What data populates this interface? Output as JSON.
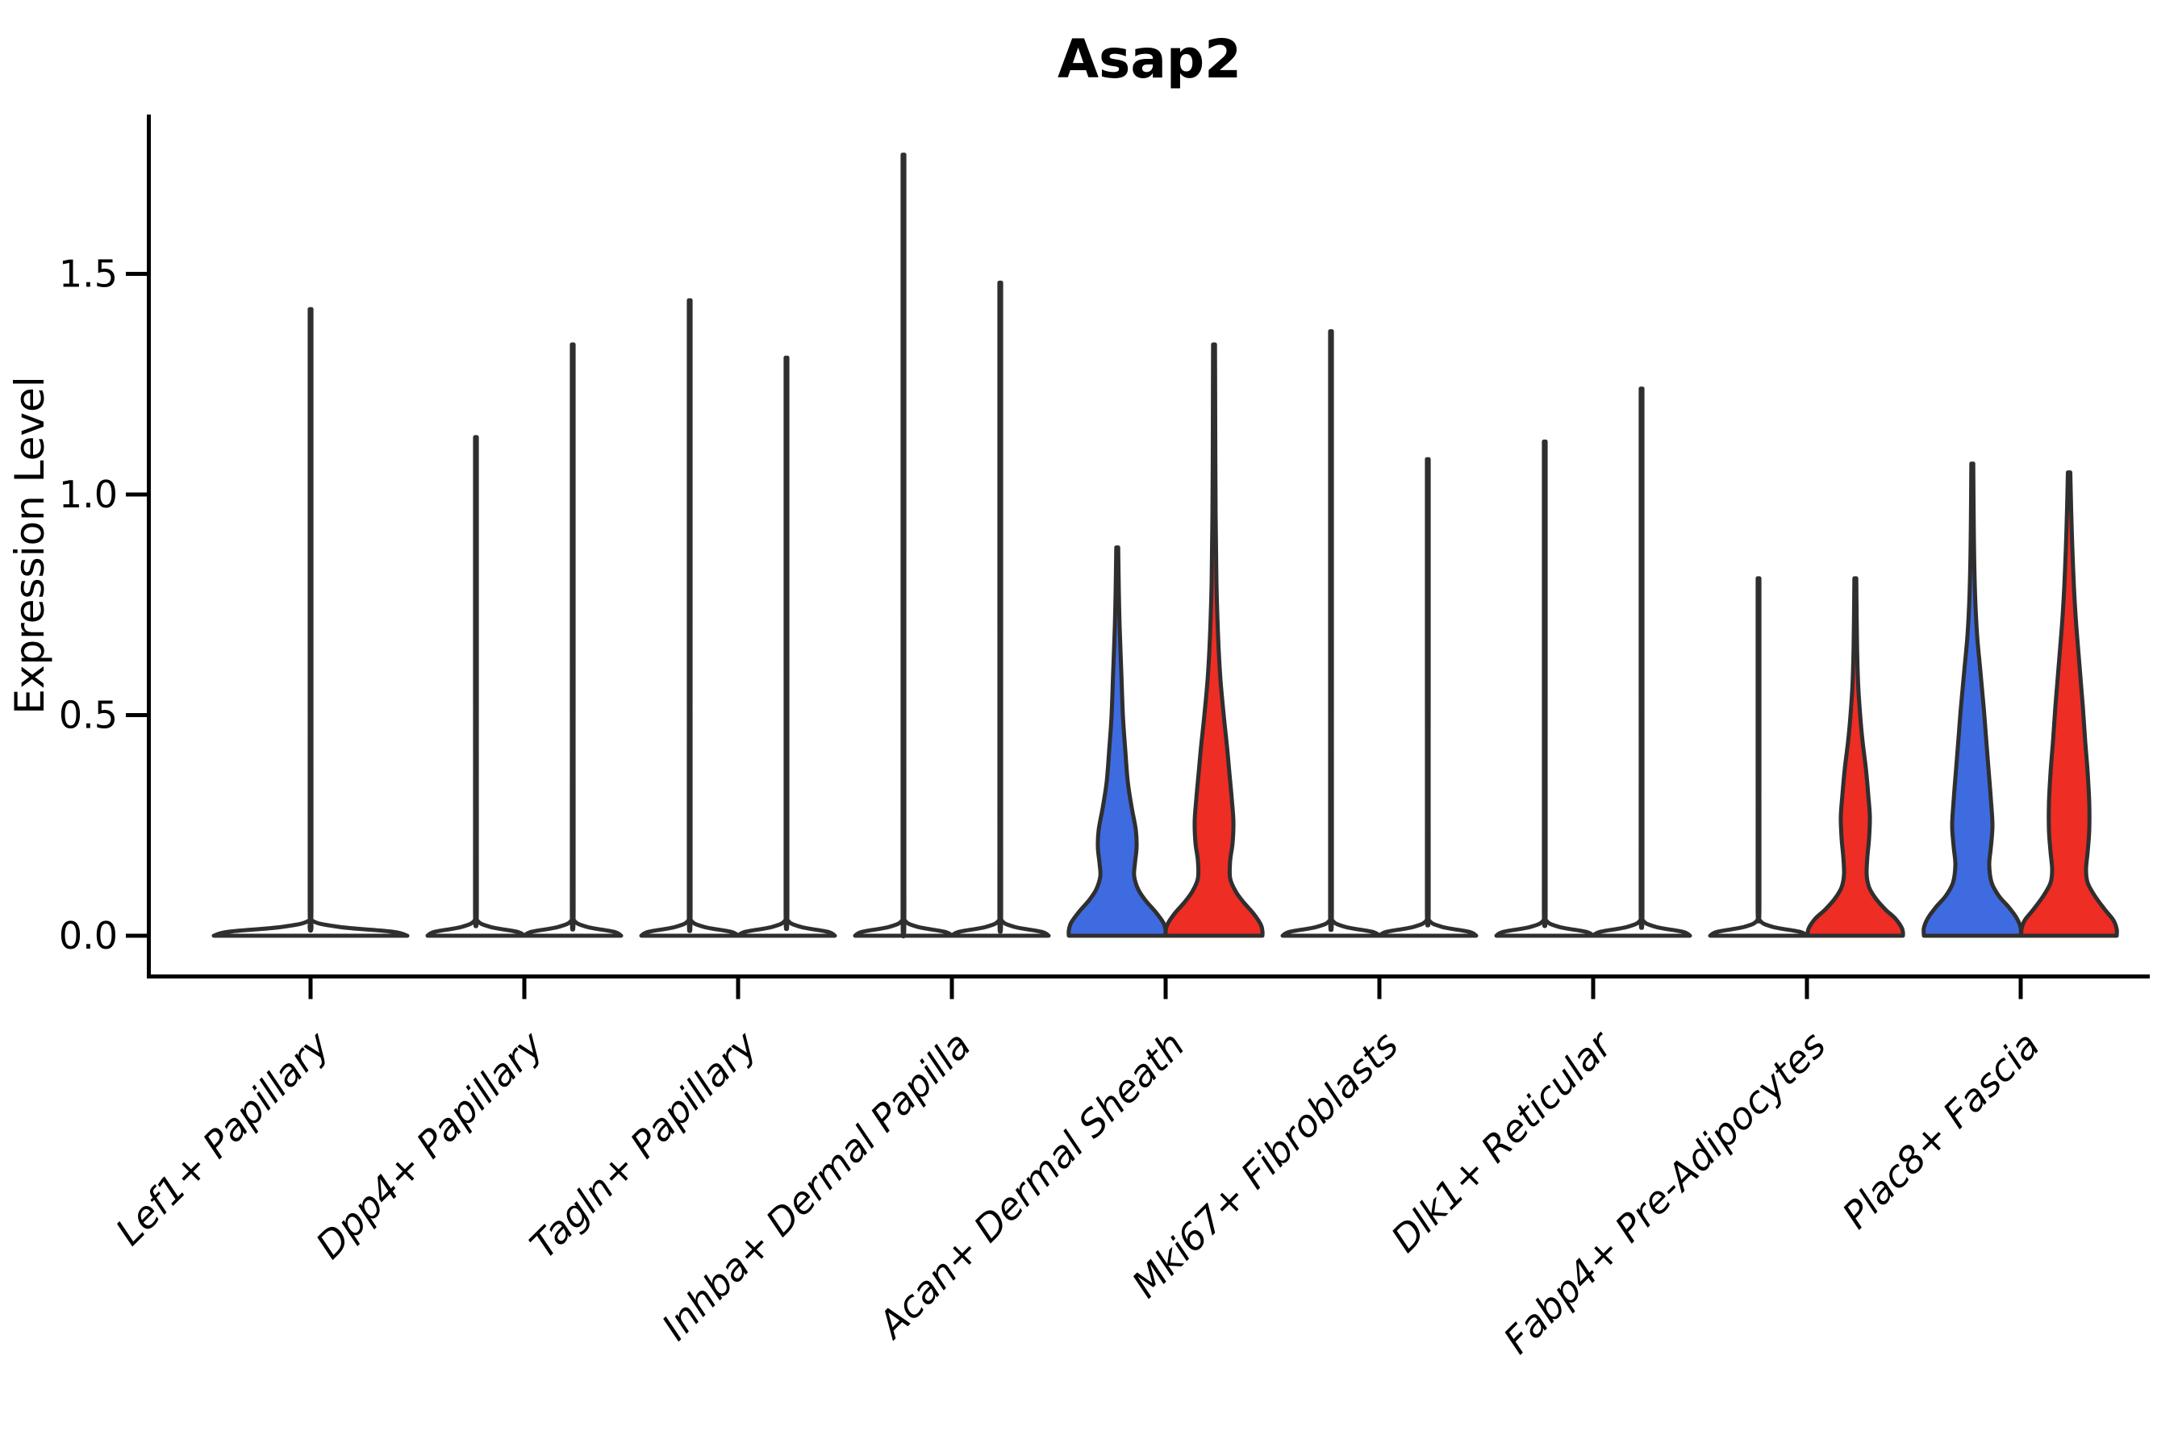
{
  "title": "Asap2",
  "axes": {
    "ylabel": "Expression Level",
    "yticklabels": [
      "0.0",
      "0.5",
      "1.0",
      "1.5"
    ]
  },
  "colors": {
    "group_blue": "#3F6BE0",
    "group_red": "#EE2D24",
    "violin_outline": "#2F2F2F",
    "axis": "#000000",
    "unfilled_violin": "#FFFFFF"
  },
  "chart_data": {
    "type": "violin",
    "title": "Asap2",
    "xlabel": "",
    "ylabel": "Expression Level",
    "ylim": [
      -0.09,
      1.86
    ],
    "yticks": [
      0.0,
      0.5,
      1.0,
      1.5
    ],
    "grid": false,
    "legend": "none",
    "categories": [
      "Lef1+ Papillary",
      "Dpp4+ Papillary",
      "Tagln+ Papillary",
      "Inhba+ Dermal Papilla",
      "Acan+ Dermal Sheath",
      "Mki67+ Fibroblasts",
      "Dlk1+ Reticular",
      "Fabp4+ Pre-Adipocytes",
      "Plac8+ Fascia"
    ],
    "violins": [
      {
        "category": 0,
        "side": "center",
        "max": 1.42,
        "color": "white",
        "kind": "spike",
        "base_halfwidth": 120
      },
      {
        "category": 1,
        "side": "left",
        "max": 1.13,
        "color": "white",
        "kind": "spike",
        "base_halfwidth": 60
      },
      {
        "category": 1,
        "side": "right",
        "max": 1.34,
        "color": "white",
        "kind": "spike",
        "base_halfwidth": 60
      },
      {
        "category": 2,
        "side": "left",
        "max": 1.44,
        "color": "white",
        "kind": "spike",
        "base_halfwidth": 60
      },
      {
        "category": 2,
        "side": "right",
        "max": 1.31,
        "color": "white",
        "kind": "spike",
        "base_halfwidth": 60
      },
      {
        "category": 3,
        "side": "left",
        "max": 1.77,
        "color": "white",
        "kind": "spike",
        "base_halfwidth": 60
      },
      {
        "category": 3,
        "side": "right",
        "max": 1.48,
        "color": "white",
        "kind": "spike",
        "base_halfwidth": 60
      },
      {
        "category": 4,
        "side": "left",
        "max": 0.88,
        "color": "blue",
        "kind": "shaped",
        "base_halfwidth": 60,
        "profile": [
          [
            0.88,
            1.2
          ],
          [
            0.78,
            2
          ],
          [
            0.7,
            3
          ],
          [
            0.6,
            5
          ],
          [
            0.5,
            7
          ],
          [
            0.42,
            10
          ],
          [
            0.35,
            13
          ],
          [
            0.29,
            18
          ],
          [
            0.24,
            23
          ],
          [
            0.2,
            24
          ],
          [
            0.165,
            22
          ],
          [
            0.135,
            21
          ],
          [
            0.105,
            26
          ],
          [
            0.08,
            35
          ],
          [
            0.055,
            47
          ],
          [
            0.03,
            57
          ],
          [
            0.012,
            60
          ],
          [
            0,
            60
          ]
        ]
      },
      {
        "category": 4,
        "side": "right",
        "max": 1.34,
        "color": "red",
        "kind": "shaped",
        "base_halfwidth": 60,
        "profile": [
          [
            1.34,
            1.2
          ],
          [
            1.15,
            1.5
          ],
          [
            0.95,
            2
          ],
          [
            0.8,
            3
          ],
          [
            0.68,
            5
          ],
          [
            0.58,
            8
          ],
          [
            0.5,
            12
          ],
          [
            0.43,
            16
          ],
          [
            0.37,
            19
          ],
          [
            0.31,
            22
          ],
          [
            0.26,
            24
          ],
          [
            0.21,
            23
          ],
          [
            0.17,
            20
          ],
          [
            0.13,
            20
          ],
          [
            0.1,
            27
          ],
          [
            0.075,
            37
          ],
          [
            0.05,
            49
          ],
          [
            0.025,
            58
          ],
          [
            0.01,
            60
          ],
          [
            0,
            60
          ]
        ]
      },
      {
        "category": 5,
        "side": "left",
        "max": 1.37,
        "color": "white",
        "kind": "spike",
        "base_halfwidth": 60
      },
      {
        "category": 5,
        "side": "right",
        "max": 1.08,
        "color": "white",
        "kind": "spike",
        "base_halfwidth": 60
      },
      {
        "category": 6,
        "side": "left",
        "max": 1.12,
        "color": "white",
        "kind": "spike",
        "base_halfwidth": 60
      },
      {
        "category": 6,
        "side": "right",
        "max": 1.24,
        "color": "white",
        "kind": "spike",
        "base_halfwidth": 60
      },
      {
        "category": 7,
        "side": "left",
        "max": 0.81,
        "color": "white",
        "kind": "spike",
        "base_halfwidth": 60
      },
      {
        "category": 7,
        "side": "right",
        "max": 0.81,
        "color": "red",
        "kind": "shaped",
        "base_halfwidth": 59,
        "profile": [
          [
            0.81,
            1.2
          ],
          [
            0.73,
            1.6
          ],
          [
            0.65,
            2.2
          ],
          [
            0.57,
            3.5
          ],
          [
            0.5,
            6
          ],
          [
            0.44,
            9
          ],
          [
            0.38,
            13
          ],
          [
            0.32,
            16
          ],
          [
            0.27,
            18
          ],
          [
            0.22,
            17
          ],
          [
            0.18,
            15
          ],
          [
            0.14,
            14
          ],
          [
            0.11,
            17
          ],
          [
            0.085,
            25
          ],
          [
            0.06,
            37
          ],
          [
            0.04,
            49
          ],
          [
            0.02,
            57
          ],
          [
            0.008,
            59
          ],
          [
            0,
            59
          ]
        ]
      },
      {
        "category": 8,
        "side": "left",
        "max": 1.07,
        "color": "blue",
        "kind": "shaped",
        "base_halfwidth": 60,
        "profile": [
          [
            1.07,
            1.2
          ],
          [
            0.97,
            1.6
          ],
          [
            0.87,
            2.2
          ],
          [
            0.77,
            3.5
          ],
          [
            0.68,
            6
          ],
          [
            0.6,
            10
          ],
          [
            0.52,
            14
          ],
          [
            0.45,
            17
          ],
          [
            0.38,
            20
          ],
          [
            0.31,
            23
          ],
          [
            0.25,
            25
          ],
          [
            0.2,
            23
          ],
          [
            0.16,
            21
          ],
          [
            0.12,
            24
          ],
          [
            0.09,
            33
          ],
          [
            0.065,
            45
          ],
          [
            0.04,
            55
          ],
          [
            0.018,
            60
          ],
          [
            0,
            60
          ]
        ]
      },
      {
        "category": 8,
        "side": "right",
        "max": 1.05,
        "color": "red",
        "kind": "shaped",
        "base_halfwidth": 59,
        "profile": [
          [
            1.05,
            1.5
          ],
          [
            0.97,
            2.5
          ],
          [
            0.88,
            4
          ],
          [
            0.79,
            6
          ],
          [
            0.7,
            9
          ],
          [
            0.61,
            13
          ],
          [
            0.52,
            17
          ],
          [
            0.44,
            20
          ],
          [
            0.37,
            23
          ],
          [
            0.3,
            25
          ],
          [
            0.24,
            25
          ],
          [
            0.19,
            23
          ],
          [
            0.15,
            21
          ],
          [
            0.12,
            23
          ],
          [
            0.09,
            32
          ],
          [
            0.06,
            44
          ],
          [
            0.035,
            55
          ],
          [
            0.015,
            59
          ],
          [
            0,
            59
          ]
        ]
      }
    ]
  }
}
